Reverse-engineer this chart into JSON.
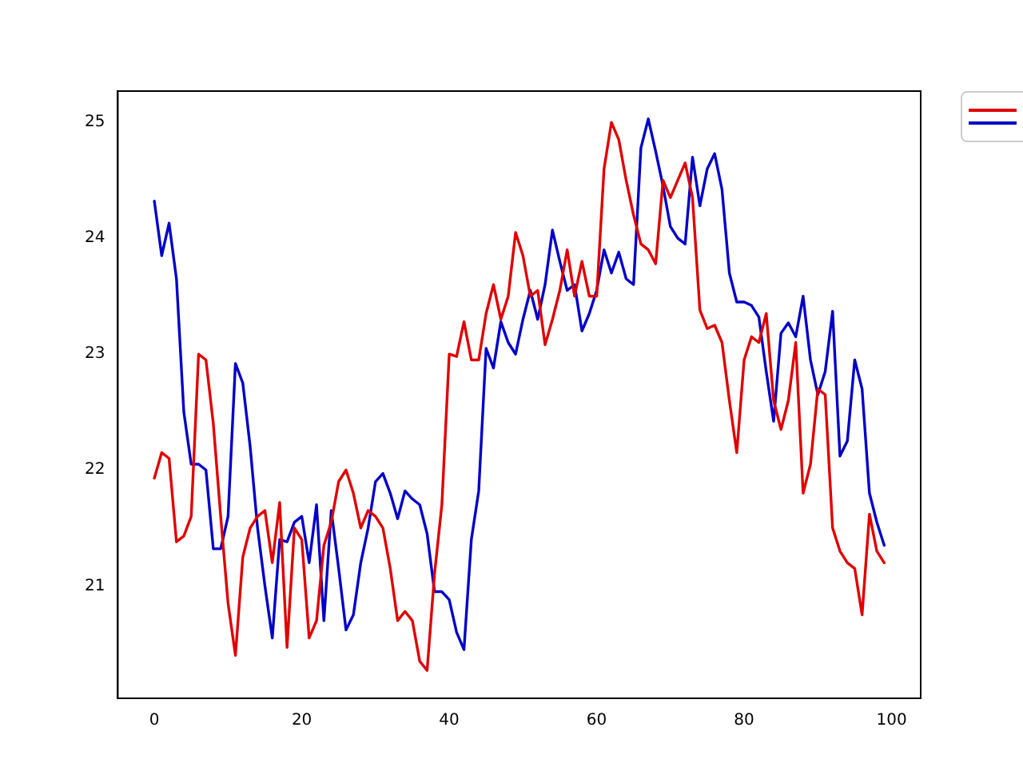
{
  "chart_data": {
    "type": "line",
    "x": [
      0,
      1,
      2,
      3,
      4,
      5,
      6,
      7,
      8,
      9,
      10,
      11,
      12,
      13,
      14,
      15,
      16,
      17,
      18,
      19,
      20,
      21,
      22,
      23,
      24,
      25,
      26,
      27,
      28,
      29,
      30,
      31,
      32,
      33,
      34,
      35,
      36,
      37,
      38,
      39,
      40,
      41,
      42,
      43,
      44,
      45,
      46,
      47,
      48,
      49,
      50,
      51,
      52,
      53,
      54,
      55,
      56,
      57,
      58,
      59,
      60,
      61,
      62,
      63,
      64,
      65,
      66,
      67,
      68,
      69,
      70,
      71,
      72,
      73,
      74,
      75,
      76,
      77,
      78,
      79,
      80,
      81,
      82,
      83,
      84,
      85,
      86,
      87,
      88,
      89,
      90,
      91,
      92,
      93,
      94,
      95,
      96,
      97,
      98,
      99
    ],
    "series": [
      {
        "color": "#e00000",
        "values": [
          21.93,
          22.15,
          22.1,
          21.38,
          21.43,
          21.6,
          23.0,
          22.95,
          22.4,
          21.6,
          20.85,
          20.4,
          21.25,
          21.5,
          21.6,
          21.65,
          21.2,
          21.72,
          20.47,
          21.5,
          21.4,
          20.55,
          20.7,
          21.35,
          21.55,
          21.9,
          22.0,
          21.8,
          21.5,
          21.65,
          21.6,
          21.5,
          21.15,
          20.7,
          20.78,
          20.7,
          20.35,
          20.27,
          21.1,
          21.7,
          23.0,
          22.98,
          23.28,
          22.95,
          22.95,
          23.35,
          23.6,
          23.3,
          23.5,
          24.05,
          23.85,
          23.5,
          23.55,
          23.08,
          23.3,
          23.55,
          23.9,
          23.5,
          23.8,
          23.5,
          23.5,
          24.6,
          25.0,
          24.85,
          24.5,
          24.2,
          23.95,
          23.9,
          23.78,
          24.5,
          24.35,
          24.5,
          24.65,
          24.35,
          23.38,
          23.22,
          23.25,
          23.1,
          22.6,
          22.15,
          22.95,
          23.15,
          23.1,
          23.35,
          22.6,
          22.35,
          22.6,
          23.1,
          21.8,
          22.05,
          22.7,
          22.65,
          21.5,
          21.3,
          21.2,
          21.15,
          20.75,
          21.62,
          21.3,
          21.2
        ]
      },
      {
        "color": "#0000c8",
        "values": [
          24.32,
          23.85,
          24.13,
          23.65,
          22.5,
          22.05,
          22.05,
          22.0,
          21.32,
          21.32,
          21.6,
          22.92,
          22.75,
          22.2,
          21.5,
          21.0,
          20.55,
          21.4,
          21.38,
          21.55,
          21.6,
          21.2,
          21.7,
          20.7,
          21.65,
          21.15,
          20.62,
          20.75,
          21.2,
          21.5,
          21.9,
          21.97,
          21.8,
          21.58,
          21.82,
          21.75,
          21.7,
          21.45,
          20.95,
          20.95,
          20.88,
          20.6,
          20.45,
          21.4,
          21.82,
          23.05,
          22.88,
          23.28,
          23.1,
          23.0,
          23.3,
          23.55,
          23.3,
          23.6,
          24.07,
          23.8,
          23.55,
          23.6,
          23.2,
          23.35,
          23.55,
          23.9,
          23.7,
          23.88,
          23.65,
          23.6,
          24.78,
          25.03,
          24.75,
          24.45,
          24.1,
          24.0,
          23.95,
          24.7,
          24.28,
          24.6,
          24.73,
          24.42,
          23.7,
          23.45,
          23.45,
          23.42,
          23.32,
          22.85,
          22.42,
          23.18,
          23.27,
          23.15,
          23.5,
          22.95,
          22.65,
          22.85,
          23.37,
          22.12,
          22.25,
          22.95,
          22.7,
          21.8,
          21.55,
          21.35
        ]
      }
    ],
    "xlim": [
      -4.95,
      103.95
    ],
    "xticks": [
      0,
      20,
      40,
      60,
      80,
      100
    ],
    "ylim": [
      20.03,
      25.27
    ],
    "yticks": [
      21,
      22,
      23,
      24,
      25
    ],
    "grid": false,
    "marker": "none",
    "line_style": "solid"
  }
}
